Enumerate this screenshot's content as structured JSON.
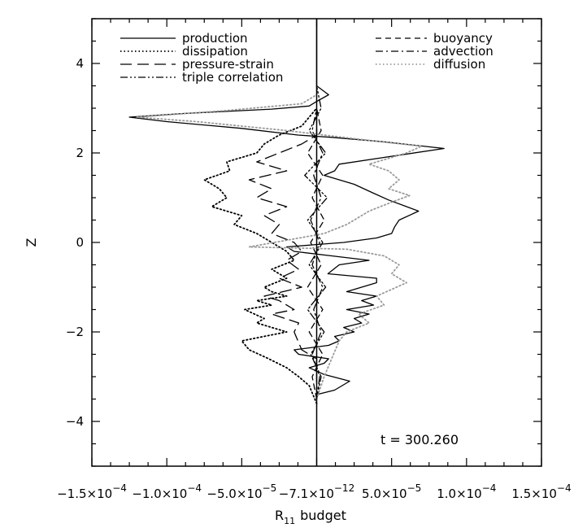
{
  "chart_data": {
    "type": "line",
    "title": "",
    "xlabel": "R",
    "xlabel_subscript": "11",
    "xlabel_suffix": "budget",
    "ylabel": "Z",
    "xlim": [
      -0.00015,
      0.00015
    ],
    "ylim": [
      -5,
      5
    ],
    "x_ticks": [
      {
        "value": -0.00015,
        "mantissa": "−1.5×10",
        "exp": "−4"
      },
      {
        "value": -0.0001,
        "mantissa": "−1.0×10",
        "exp": "−4"
      },
      {
        "value": -5e-05,
        "mantissa": "−5.0×10",
        "exp": "−5"
      },
      {
        "value": 0,
        "mantissa": "−7.1×10",
        "exp": "−12"
      },
      {
        "value": 5e-05,
        "mantissa": "5.0×10",
        "exp": "−5"
      },
      {
        "value": 0.0001,
        "mantissa": "1.0×10",
        "exp": "−4"
      },
      {
        "value": 0.00015,
        "mantissa": "1.5×10",
        "exp": "−4"
      }
    ],
    "y_ticks": [
      -4,
      -2,
      0,
      2,
      4
    ],
    "y_tick_labels": [
      "−4",
      "−2",
      "0",
      "2",
      "4"
    ],
    "grid": false,
    "annotation": "t = 300.260",
    "legend": {
      "placement": "top",
      "columns": 2
    },
    "series": [
      {
        "name": "production",
        "dash": "solid",
        "color": "#000000",
        "points": [
          [
            0,
            -3.5
          ],
          [
            0,
            -3.4
          ],
          [
            1.2e-05,
            -3.3
          ],
          [
            2.2e-05,
            -3.1
          ],
          [
            5e-06,
            -2.95
          ],
          [
            -5e-06,
            -2.8
          ],
          [
            5e-06,
            -2.7
          ],
          [
            8e-06,
            -2.6
          ],
          [
            -1.2e-05,
            -2.5
          ],
          [
            -1.5e-05,
            -2.4
          ],
          [
            8e-06,
            -2.3
          ],
          [
            1.5e-05,
            -2.2
          ],
          [
            1.2e-05,
            -2.1
          ],
          [
            2.5e-05,
            -2.0
          ],
          [
            1.8e-05,
            -1.9
          ],
          [
            3e-05,
            -1.8
          ],
          [
            2.5e-05,
            -1.7
          ],
          [
            3.5e-05,
            -1.6
          ],
          [
            2e-05,
            -1.5
          ],
          [
            3.8e-05,
            -1.4
          ],
          [
            3e-05,
            -1.3
          ],
          [
            4e-05,
            -1.2
          ],
          [
            2e-05,
            -1.1
          ],
          [
            3e-05,
            -1.0
          ],
          [
            4e-05,
            -0.9
          ],
          [
            4e-05,
            -0.8
          ],
          [
            7.5e-06,
            -0.7
          ],
          [
            1.5e-05,
            -0.5
          ],
          [
            3.5e-05,
            -0.4
          ],
          [
            1e-05,
            -0.3
          ],
          [
            -1.5e-05,
            -0.2
          ],
          [
            -2e-05,
            -0.1
          ],
          [
            1.8e-05,
            0.0
          ],
          [
            4e-05,
            0.1
          ],
          [
            5e-05,
            0.2
          ],
          [
            5.2e-05,
            0.35
          ],
          [
            5.5e-05,
            0.5
          ],
          [
            6.8e-05,
            0.7
          ],
          [
            6e-05,
            0.8
          ],
          [
            4.8e-05,
            0.95
          ],
          [
            3.8e-05,
            1.1
          ],
          [
            2.5e-05,
            1.3
          ],
          [
            5e-06,
            1.5
          ],
          [
            1.2e-05,
            1.6
          ],
          [
            1.5e-05,
            1.75
          ],
          [
            4.5e-05,
            1.9
          ],
          [
            8.5e-05,
            2.1
          ],
          [
            4.5e-05,
            2.25
          ],
          [
            1e-05,
            2.35
          ],
          [
            -1.25e-05,
            2.4
          ],
          [
            -5e-05,
            2.55
          ],
          [
            -0.0001,
            2.7
          ],
          [
            -0.000125,
            2.8
          ],
          [
            -9e-05,
            2.88
          ],
          [
            -3e-05,
            2.98
          ],
          [
            -5e-06,
            3.05
          ],
          [
            0,
            3.15
          ],
          [
            8e-06,
            3.3
          ],
          [
            0,
            3.5
          ],
          [
            0,
            5
          ]
        ]
      },
      {
        "name": "dissipation",
        "dash": "dotted",
        "color": "#000000",
        "points": [
          [
            0,
            -3.6
          ],
          [
            -5e-06,
            -3.2
          ],
          [
            -1.2e-05,
            -3.0
          ],
          [
            -2e-05,
            -2.8
          ],
          [
            -3.2e-05,
            -2.6
          ],
          [
            -4.5e-05,
            -2.4
          ],
          [
            -5e-05,
            -2.2
          ],
          [
            -2e-05,
            -2.0
          ],
          [
            -4e-05,
            -1.8
          ],
          [
            -3.5e-05,
            -1.7
          ],
          [
            -4.8e-05,
            -1.5
          ],
          [
            -3e-05,
            -1.4
          ],
          [
            -4e-05,
            -1.3
          ],
          [
            -2e-05,
            -1.2
          ],
          [
            -3e-05,
            -1.1
          ],
          [
            -3.5e-05,
            -1.0
          ],
          [
            -2e-05,
            -0.8
          ],
          [
            -3e-05,
            -0.6
          ],
          [
            -1.5e-05,
            -0.4
          ],
          [
            -2e-05,
            -0.2
          ],
          [
            -2.5e-05,
            -0.1
          ],
          [
            -3e-05,
            0.0
          ],
          [
            -4e-05,
            0.2
          ],
          [
            -5.5e-05,
            0.4
          ],
          [
            -5e-05,
            0.6
          ],
          [
            -7e-05,
            0.8
          ],
          [
            -6e-05,
            1.0
          ],
          [
            -6.5e-05,
            1.2
          ],
          [
            -7.5e-05,
            1.4
          ],
          [
            -5.8e-05,
            1.6
          ],
          [
            -6e-05,
            1.8
          ],
          [
            -4e-05,
            2.0
          ],
          [
            -3.5e-05,
            2.2
          ],
          [
            -2.5e-05,
            2.4
          ],
          [
            -1e-05,
            2.6
          ],
          [
            -5e-06,
            2.8
          ],
          [
            0,
            3.0
          ]
        ]
      },
      {
        "name": "pressure-strain",
        "dash": "long-dash",
        "color": "#000000",
        "points": [
          [
            0,
            -3.5
          ],
          [
            0,
            -2.6
          ],
          [
            -1e-05,
            -2.4
          ],
          [
            -1.5e-05,
            -2.0
          ],
          [
            -1.2e-05,
            -1.8
          ],
          [
            -3e-05,
            -1.6
          ],
          [
            -1.5e-05,
            -1.5
          ],
          [
            -2.5e-05,
            -1.3
          ],
          [
            -3.5e-05,
            -1.2
          ],
          [
            -1e-05,
            -1.0
          ],
          [
            -2.5e-05,
            -0.8
          ],
          [
            -1.2e-05,
            -0.6
          ],
          [
            -2e-05,
            -0.4
          ],
          [
            -1e-05,
            -0.2
          ],
          [
            -1.5e-05,
            0.0
          ],
          [
            -3e-05,
            0.2
          ],
          [
            -2.5e-05,
            0.4
          ],
          [
            -3.5e-05,
            0.6
          ],
          [
            -2e-05,
            0.8
          ],
          [
            -4e-05,
            1.0
          ],
          [
            -3e-05,
            1.2
          ],
          [
            -4.5e-05,
            1.4
          ],
          [
            -2e-05,
            1.6
          ],
          [
            -4e-05,
            1.8
          ],
          [
            -2.5e-05,
            2.0
          ],
          [
            -1e-05,
            2.2
          ],
          [
            0,
            2.4
          ],
          [
            0,
            3.0
          ]
        ]
      },
      {
        "name": "triple correlation",
        "dash": "dash-dot-dot",
        "color": "#000000",
        "points": [
          [
            0,
            -3.5
          ],
          [
            3e-06,
            -3.0
          ],
          [
            -4e-06,
            -2.5
          ],
          [
            5e-06,
            -2.0
          ],
          [
            -6e-06,
            -1.5
          ],
          [
            6e-06,
            -1.0
          ],
          [
            -5e-06,
            -0.5
          ],
          [
            4e-06,
            0.0
          ],
          [
            -6e-06,
            0.5
          ],
          [
            7e-06,
            1.0
          ],
          [
            -8e-06,
            1.5
          ],
          [
            6e-06,
            2.0
          ],
          [
            -5e-06,
            2.5
          ],
          [
            3e-06,
            3.0
          ],
          [
            0,
            3.5
          ]
        ]
      },
      {
        "name": "buoyancy",
        "dash": "short-dash",
        "color": "#000000",
        "points": [
          [
            0,
            -3.5
          ],
          [
            -3e-06,
            -3.0
          ],
          [
            4e-06,
            -2.5
          ],
          [
            -5e-06,
            -2.0
          ],
          [
            4e-06,
            -1.5
          ],
          [
            -6e-06,
            -1.0
          ],
          [
            3e-06,
            -0.5
          ],
          [
            -4e-06,
            0.0
          ],
          [
            5e-06,
            0.5
          ],
          [
            -3e-06,
            1.0
          ],
          [
            4e-06,
            1.5
          ],
          [
            -6e-06,
            2.0
          ],
          [
            3e-06,
            2.5
          ],
          [
            0,
            3.0
          ]
        ]
      },
      {
        "name": "advection",
        "dash": "dash-dot",
        "color": "#000000",
        "points": [
          [
            0,
            -3.5
          ],
          [
            2e-06,
            -3.0
          ],
          [
            -3e-06,
            -2.5
          ],
          [
            3e-06,
            -2.0
          ],
          [
            -2e-06,
            -1.5
          ],
          [
            4e-06,
            -1.0
          ],
          [
            -3e-06,
            -0.5
          ],
          [
            2e-06,
            0.0
          ],
          [
            -4e-06,
            0.5
          ],
          [
            3e-06,
            1.0
          ],
          [
            -2e-06,
            1.5
          ],
          [
            4e-06,
            2.0
          ],
          [
            -3e-06,
            2.5
          ],
          [
            0,
            3.0
          ]
        ]
      },
      {
        "name": "diffusion",
        "dash": "dotted",
        "color": "#9a9a9a",
        "points": [
          [
            0,
            -3.5
          ],
          [
            5e-06,
            -3.0
          ],
          [
            1e-05,
            -2.6
          ],
          [
            1.5e-05,
            -2.2
          ],
          [
            2e-05,
            -2.0
          ],
          [
            3.5e-05,
            -1.8
          ],
          [
            2.8e-05,
            -1.6
          ],
          [
            4.5e-05,
            -1.4
          ],
          [
            4e-05,
            -1.2
          ],
          [
            6e-05,
            -0.9
          ],
          [
            5e-05,
            -0.7
          ],
          [
            5.5e-05,
            -0.5
          ],
          [
            4.5e-05,
            -0.3
          ],
          [
            2e-05,
            -0.15
          ],
          [
            -4.5e-05,
            -0.1
          ],
          [
            -2e-05,
            0.05
          ],
          [
            5e-06,
            0.2
          ],
          [
            2e-05,
            0.4
          ],
          [
            3.5e-05,
            0.7
          ],
          [
            5e-05,
            0.9
          ],
          [
            6.2e-05,
            1.05
          ],
          [
            4.8e-05,
            1.2
          ],
          [
            5.5e-05,
            1.4
          ],
          [
            4.8e-05,
            1.6
          ],
          [
            3.5e-05,
            1.75
          ],
          [
            6e-05,
            2.0
          ],
          [
            7e-05,
            2.15
          ],
          [
            3e-05,
            2.3
          ],
          [
            -2e-05,
            2.5
          ],
          [
            -8e-05,
            2.7
          ],
          [
            -0.00012,
            2.8
          ],
          [
            -6e-05,
            2.95
          ],
          [
            -1e-05,
            3.1
          ],
          [
            0,
            3.3
          ],
          [
            0,
            3.5
          ]
        ]
      }
    ]
  }
}
